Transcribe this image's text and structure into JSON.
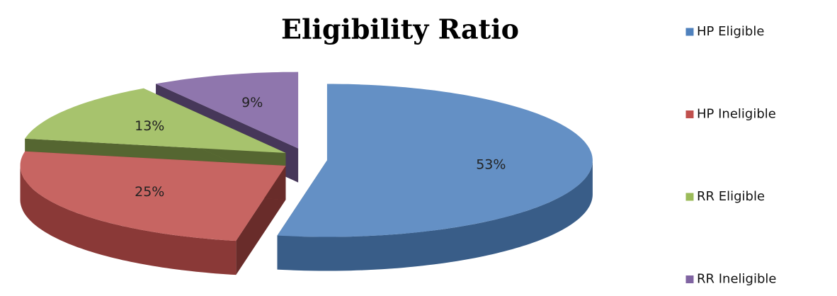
{
  "chart_data": {
    "type": "pie",
    "title": "Eligibility Ratio",
    "categories": [
      "HP Eligible",
      "HP Ineligible",
      "RR Eligible",
      "RR Ineligible"
    ],
    "values": [
      53,
      25,
      13,
      9
    ],
    "value_labels": [
      "53%",
      "25%",
      "13%",
      "9%"
    ],
    "colors": [
      "#4f81bd",
      "#c0504d",
      "#9bbb59",
      "#8064a2"
    ],
    "legend": "right"
  }
}
